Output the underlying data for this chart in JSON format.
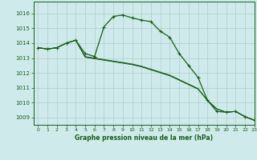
{
  "title": "Graphe pression niveau de la mer (hPa)",
  "bg_color": "#ceeaea",
  "grid_color": "#b0cccc",
  "line_color": "#1a5c1a",
  "xlim": [
    -0.5,
    23
  ],
  "ylim": [
    1008.5,
    1016.8
  ],
  "yticks": [
    1009,
    1010,
    1011,
    1012,
    1013,
    1014,
    1015,
    1016
  ],
  "xticks": [
    0,
    1,
    2,
    3,
    4,
    5,
    6,
    7,
    8,
    9,
    10,
    11,
    12,
    13,
    14,
    15,
    16,
    17,
    18,
    19,
    20,
    21,
    22,
    23
  ],
  "series": [
    [
      1013.7,
      1013.6,
      1013.7,
      1014.0,
      1014.2,
      1013.3,
      1013.1,
      1015.1,
      1015.8,
      1015.9,
      1015.7,
      1015.55,
      1015.45,
      1014.8,
      1014.4,
      1013.3,
      1012.5,
      1011.7,
      1010.15,
      1009.4,
      1009.35,
      1009.4,
      1009.05,
      1008.8
    ],
    [
      1013.7,
      1013.6,
      1013.7,
      1014.0,
      1014.2,
      1013.05,
      1012.95,
      1012.85,
      1012.75,
      1012.65,
      1012.55,
      1012.4,
      1012.2,
      1012.0,
      1011.8,
      1011.5,
      1011.2,
      1010.9,
      1010.15,
      1009.55,
      1009.35,
      1009.4,
      1009.05,
      1008.8
    ],
    [
      1013.7,
      1013.6,
      1013.7,
      1014.0,
      1014.2,
      1013.1,
      1013.0,
      1012.9,
      1012.8,
      1012.7,
      1012.6,
      1012.45,
      1012.25,
      1012.05,
      1011.85,
      1011.55,
      1011.25,
      1010.95,
      1010.15,
      1009.58,
      1009.35,
      1009.4,
      1009.05,
      1008.8
    ],
    [
      1013.7,
      1013.6,
      1013.7,
      1014.0,
      1014.2,
      1013.07,
      1012.97,
      1012.87,
      1012.77,
      1012.67,
      1012.57,
      1012.42,
      1012.22,
      1012.02,
      1011.82,
      1011.52,
      1011.22,
      1010.92,
      1010.15,
      1009.56,
      1009.35,
      1009.4,
      1009.05,
      1008.8
    ]
  ]
}
